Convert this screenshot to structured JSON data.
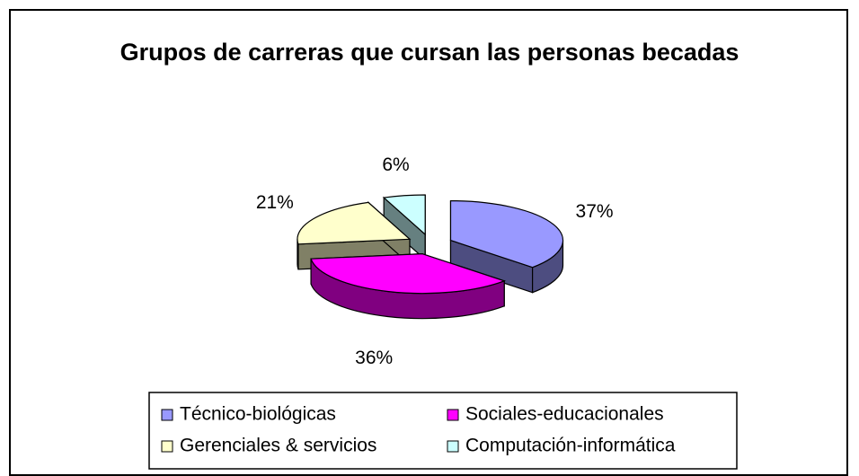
{
  "chart_data": {
    "type": "pie",
    "title": "Grupos de carreras que cursan las personas becadas",
    "categories": [
      "Técnico-biológicas",
      "Sociales-educacionales",
      "Gerenciales & servicios",
      "Computación-informática"
    ],
    "values": [
      37,
      36,
      21,
      6
    ],
    "value_labels": [
      "37%",
      "36%",
      "21%",
      "6%"
    ],
    "colors": [
      "#9999ff",
      "#ff00ff",
      "#ffffcc",
      "#ccffff"
    ]
  }
}
